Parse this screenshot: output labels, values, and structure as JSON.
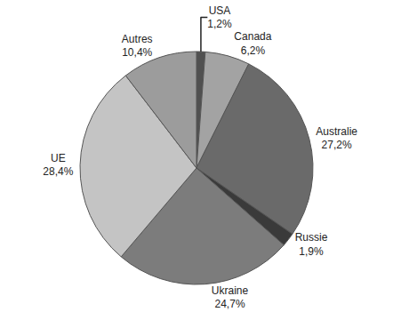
{
  "chart_data": {
    "type": "pie",
    "categories": [
      "USA",
      "Canada",
      "Australie",
      "Russie",
      "Ukraine",
      "UE",
      "Autres"
    ],
    "values": [
      1.2,
      6.2,
      27.2,
      1.9,
      24.7,
      28.4,
      10.4
    ],
    "value_labels": [
      "1,2%",
      "6,2%",
      "27,2%",
      "1,9%",
      "24,7%",
      "28,4%",
      "10,4%"
    ],
    "colors": [
      "#505050",
      "#a3a3a3",
      "#6a6a6a",
      "#3a3a3a",
      "#7c7c7c",
      "#c4c4c4",
      "#9c9c9c"
    ],
    "data_labels": true
  }
}
